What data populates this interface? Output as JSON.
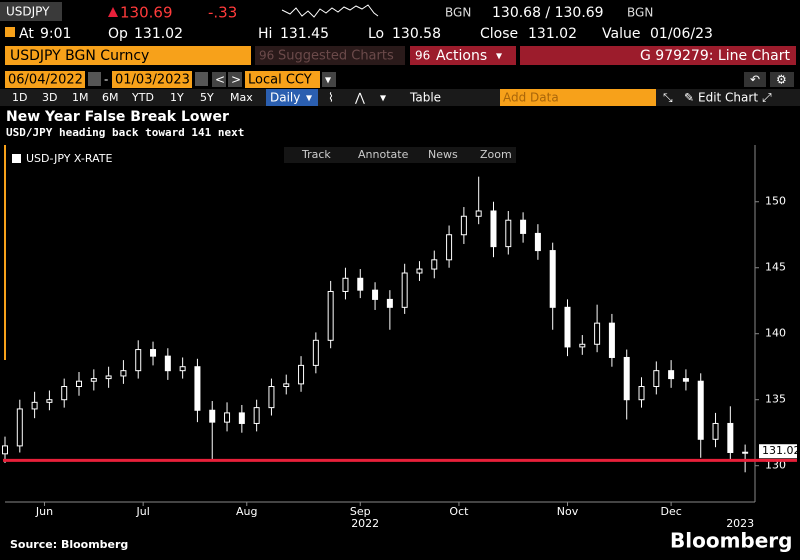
{
  "terminal": {
    "ticker": "USDJPY",
    "last": "130.69",
    "change": "-.33",
    "source1": "BGN",
    "bid_ask": "130.68 / 130.69",
    "source2": "BGN",
    "at_label": "At",
    "at": "9:01",
    "op_label": "Op",
    "op": "131.02",
    "hi_label": "Hi",
    "hi": "131.45",
    "lo_label": "Lo",
    "lo": "130.58",
    "close_label": "Close",
    "close": "131.02",
    "value_label": "Value",
    "value": "01/06/23",
    "security": "USDJPY BGN Curncy",
    "suggested_code": "96",
    "suggested": "Suggested Charts",
    "actions_code": "96",
    "actions": "Actions",
    "chart_id": "G 979279: Line Chart",
    "start_date": "06/04/2022",
    "end_date": "01/03/2023",
    "currency": "Local CCY",
    "periods": [
      "1D",
      "3D",
      "1M",
      "6M",
      "YTD",
      "1Y",
      "5Y",
      "Max"
    ],
    "frequency": "Daily",
    "table": "Table",
    "add_data": "Add Data",
    "edit_chart": "Edit Chart",
    "tools": [
      "Track",
      "Annotate",
      "News",
      "Zoom"
    ],
    "logo": "Bloomberg"
  },
  "chart_data": {
    "type": "candlestick",
    "title": "New Year False Break Lower",
    "subtitle": "USD/JPY heading back toward 141 next",
    "source": "Source: Bloomberg",
    "x": [
      0,
      3,
      6,
      9,
      12,
      15,
      18,
      21,
      24,
      27,
      30,
      33,
      36,
      39,
      42,
      45,
      48,
      51,
      54,
      57,
      60,
      63,
      66,
      69,
      72,
      75,
      78,
      81,
      84,
      87,
      90,
      93,
      96,
      99,
      102,
      105,
      108,
      111,
      114,
      117,
      120,
      123,
      126,
      129,
      132,
      135,
      138,
      141,
      144,
      147,
      150
    ],
    "series": [
      {
        "name": "USD-JPY X-RATE",
        "color": "#ffffff",
        "open": [
          130.9,
          131.5,
          134.3,
          134.8,
          135.0,
          136.0,
          136.4,
          136.6,
          136.8,
          137.2,
          138.8,
          138.3,
          137.2,
          137.5,
          134.2,
          133.3,
          134.0,
          133.2,
          134.4,
          136.0,
          136.2,
          137.6,
          139.5,
          143.2,
          144.2,
          143.3,
          142.6,
          142.0,
          144.6,
          144.9,
          145.6,
          147.5,
          148.9,
          149.3,
          146.6,
          148.6,
          147.6,
          146.3,
          142.0,
          139.0,
          139.2,
          140.8,
          138.2,
          135.0,
          136.0,
          137.2,
          136.6,
          136.4,
          132.0,
          133.2,
          131.0
        ],
        "high": [
          132.2,
          135.0,
          135.6,
          135.7,
          136.6,
          137.1,
          137.3,
          137.5,
          138.0,
          139.5,
          139.4,
          138.9,
          138.2,
          138.1,
          134.9,
          134.8,
          134.6,
          135.0,
          136.6,
          136.9,
          138.3,
          140.1,
          144.0,
          145.0,
          144.9,
          143.9,
          143.3,
          145.3,
          145.5,
          146.3,
          148.2,
          149.6,
          151.9,
          150.0,
          149.3,
          149.2,
          148.3,
          146.9,
          142.6,
          139.9,
          142.2,
          141.5,
          138.8,
          136.7,
          137.9,
          138.0,
          137.3,
          137.0,
          134.0,
          134.5,
          131.6
        ],
        "low": [
          130.2,
          131.0,
          133.6,
          134.2,
          134.4,
          135.3,
          135.7,
          135.9,
          136.2,
          136.6,
          137.6,
          136.5,
          136.6,
          133.3,
          130.4,
          132.6,
          132.5,
          132.6,
          133.8,
          135.4,
          135.6,
          137.0,
          138.9,
          142.6,
          142.7,
          141.8,
          140.3,
          141.5,
          144.0,
          144.2,
          145.0,
          146.8,
          148.3,
          145.8,
          146.0,
          146.9,
          145.6,
          140.3,
          138.3,
          138.4,
          138.6,
          137.5,
          133.5,
          134.4,
          135.4,
          135.9,
          135.7,
          130.6,
          131.4,
          130.5,
          129.5
        ],
        "close": [
          131.5,
          134.3,
          134.8,
          135.0,
          136.0,
          136.4,
          136.6,
          136.8,
          137.2,
          138.8,
          138.3,
          137.2,
          137.5,
          134.2,
          133.3,
          134.0,
          133.2,
          134.4,
          136.0,
          136.2,
          137.6,
          139.5,
          143.2,
          144.2,
          143.3,
          142.6,
          142.0,
          144.6,
          144.9,
          145.6,
          147.5,
          148.9,
          149.3,
          146.6,
          148.6,
          147.6,
          146.3,
          142.0,
          139.0,
          139.2,
          140.8,
          138.2,
          135.0,
          136.0,
          137.2,
          136.6,
          136.4,
          132.0,
          133.2,
          131.0,
          131.02
        ]
      }
    ],
    "xlim": [
      0,
      152
    ],
    "ylim": [
      127.4,
      154.3
    ],
    "yticks": [
      130,
      135,
      140,
      145,
      150
    ],
    "xticks": [
      {
        "value": 8,
        "label": "Jun"
      },
      {
        "value": 28,
        "label": "Jul"
      },
      {
        "value": 49,
        "label": "Aug"
      },
      {
        "value": 72,
        "label": "Sep"
      },
      {
        "value": 92,
        "label": "Oct"
      },
      {
        "value": 114,
        "label": "Nov"
      },
      {
        "value": 135,
        "label": "Dec"
      }
    ],
    "year_labels": [
      {
        "value": 73,
        "label": "2022"
      },
      {
        "value": 149,
        "label": "2023"
      }
    ],
    "reference_line": {
      "value": 130.4,
      "color": "#e8203a"
    },
    "last_price": 131.02
  }
}
